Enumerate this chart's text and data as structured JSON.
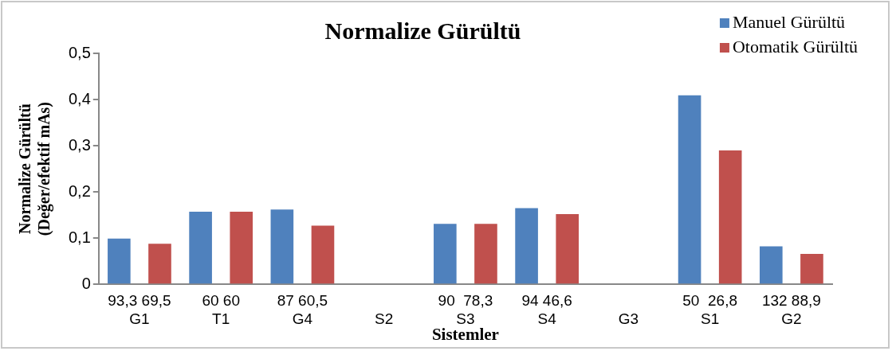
{
  "chart_data": {
    "type": "bar",
    "title": "Normalize Gürültü",
    "xlabel": "Sistemler",
    "ylabel": "Normalize Gürültü\n(Değer/efektif mAs)",
    "categories": [
      "93,3 69,5\nG1",
      "60 60\nT1",
      "87 60,5\nG4",
      "\nS2",
      "90  78,3\nS3",
      "94 46,6\nS4",
      "\nG3",
      "50  26,8\nS1",
      "132 88,9\nG2"
    ],
    "series": [
      {
        "name": "Manuel Gürültü",
        "color": "#4f81bd",
        "values": [
          0.099,
          0.157,
          0.162,
          null,
          0.131,
          0.165,
          null,
          0.409,
          0.082
        ]
      },
      {
        "name": "Otomatik Gürültü",
        "color": "#c0504d",
        "values": [
          0.088,
          0.157,
          0.127,
          null,
          0.131,
          0.152,
          null,
          0.29,
          0.066
        ]
      }
    ],
    "ylim": [
      0,
      0.5
    ],
    "yticks": [
      {
        "value": 0,
        "label": "0"
      },
      {
        "value": 0.1,
        "label": "0,1"
      },
      {
        "value": 0.2,
        "label": "0,2"
      },
      {
        "value": 0.3,
        "label": "0,3"
      },
      {
        "value": 0.4,
        "label": "0,4"
      },
      {
        "value": 0.5,
        "label": "0,5"
      }
    ],
    "grid": false,
    "legend": "top right"
  }
}
